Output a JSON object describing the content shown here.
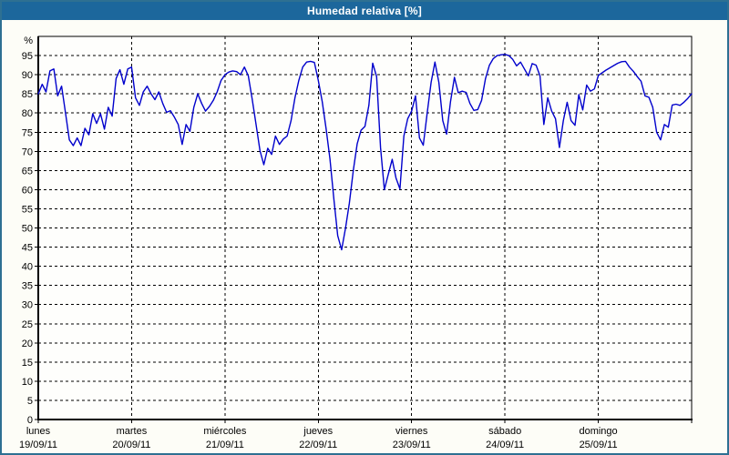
{
  "window": {
    "title": "Humedad relativa [%]"
  },
  "colors": {
    "titlebar_bg": "#1c679c",
    "title_text": "#ffffff",
    "window_border": "#2e7092",
    "window_bg": "#fdfdf7",
    "plot_bg": "#fefefc",
    "axis": "#000000",
    "grid": "#000000",
    "line": "#0000cc"
  },
  "chart_data": {
    "type": "line",
    "title": "Humedad relativa [%]",
    "unit_label": "%",
    "ylim": [
      0,
      100
    ],
    "y_tick_step": 5,
    "y_tick_labels": [
      "0",
      "5",
      "10",
      "15",
      "20",
      "25",
      "30",
      "35",
      "40",
      "45",
      "50",
      "55",
      "60",
      "65",
      "70",
      "75",
      "80",
      "85",
      "90",
      "95"
    ],
    "grid": "dashed, horizontal every 5%, vertical at day boundaries",
    "legend_position": "none",
    "x_days": [
      {
        "name": "lunes",
        "date": "19/09/11"
      },
      {
        "name": "martes",
        "date": "20/09/11"
      },
      {
        "name": "miércoles",
        "date": "21/09/11"
      },
      {
        "name": "jueves",
        "date": "22/09/11"
      },
      {
        "name": "viernes",
        "date": "23/09/11"
      },
      {
        "name": "sábado",
        "date": "24/09/11"
      },
      {
        "name": "domingo",
        "date": "25/09/11"
      }
    ],
    "sampling": "hourly (24 points per day, 168 hours + closing point)",
    "series": [
      {
        "name": "Humedad relativa",
        "values": [
          85.0,
          87.5,
          85.5,
          91.0,
          91.5,
          84.5,
          87.0,
          80.0,
          73.0,
          71.5,
          73.5,
          71.5,
          76.0,
          74.3,
          79.8,
          77.3,
          79.8,
          75.8,
          81.5,
          79.2,
          89.0,
          91.3,
          87.5,
          91.5,
          92.0,
          84.0,
          82.0,
          85.5,
          87.0,
          85.0,
          83.5,
          85.5,
          82.5,
          80.2,
          80.6,
          78.9,
          77.0,
          71.8,
          77.0,
          75.2,
          81.5,
          85.0,
          82.5,
          80.5,
          81.7,
          83.3,
          85.5,
          88.5,
          90.0,
          90.7,
          91.0,
          90.8,
          90.0,
          92.0,
          89.7,
          83.7,
          77.0,
          70.2,
          66.5,
          70.8,
          69.2,
          74.0,
          71.8,
          73.2,
          74.0,
          78.0,
          84.0,
          88.5,
          92.0,
          93.3,
          93.5,
          93.2,
          88.5,
          83.0,
          76.0,
          68.0,
          57.5,
          48.0,
          44.3,
          50.0,
          56.5,
          65.0,
          72.0,
          75.5,
          76.5,
          82.0,
          93.0,
          89.5,
          71.0,
          60.0,
          64.0,
          67.9,
          63.0,
          60.2,
          74.0,
          78.5,
          80.5,
          84.5,
          73.5,
          71.6,
          80.0,
          88.0,
          93.3,
          88.0,
          78.0,
          74.5,
          83.0,
          89.3,
          85.3,
          85.7,
          85.4,
          82.5,
          80.7,
          80.9,
          83.3,
          89.0,
          92.5,
          94.2,
          95.0,
          95.2,
          95.3,
          95.0,
          94.0,
          92.3,
          93.3,
          91.5,
          89.7,
          92.9,
          92.5,
          89.7,
          77.0,
          84.0,
          80.5,
          78.5,
          71.0,
          78.0,
          82.8,
          78.0,
          76.8,
          84.8,
          80.8,
          87.3,
          85.7,
          86.3,
          89.8,
          90.5,
          91.2,
          91.8,
          92.4,
          93.0,
          93.4,
          93.5,
          92.0,
          90.9,
          89.5,
          88.3,
          84.5,
          84.1,
          81.5,
          75.0,
          73.0,
          77.0,
          76.3,
          82.1,
          82.3,
          82.0,
          82.8,
          83.8,
          85.0
        ]
      }
    ]
  }
}
